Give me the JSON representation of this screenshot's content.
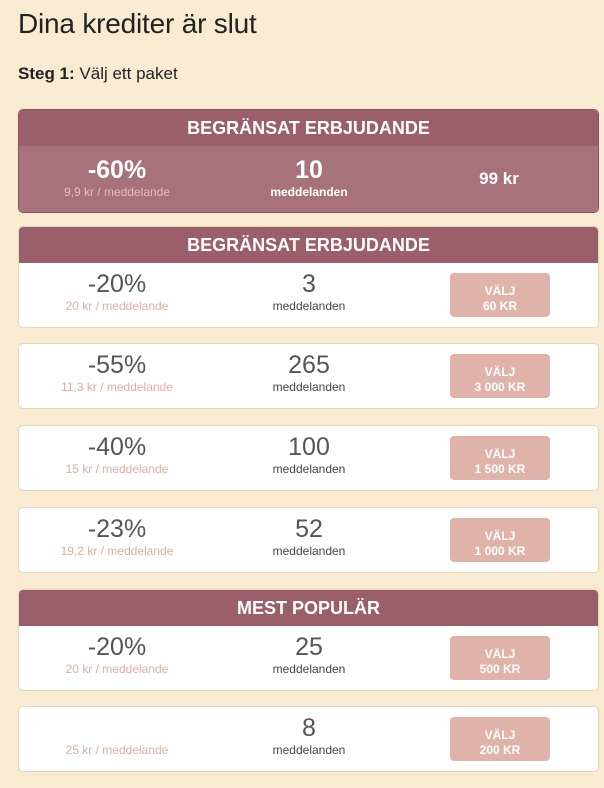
{
  "page": {
    "title": "Dina krediter är slut",
    "step_label": "Steg 1:",
    "step_text": " Välj ett paket"
  },
  "featured": {
    "header": "BEGRÄNSAT ERBJUDANDE",
    "discount": "-60%",
    "per_message": "9,9 kr / meddelande",
    "count": "10",
    "unit": "meddelanden",
    "price": "99 kr"
  },
  "offer_group": {
    "header": "BEGRÄNSAT ERBJUDANDE",
    "row": {
      "discount": "-20%",
      "per_message": "20 kr / meddelande",
      "count": "3",
      "unit": "meddelanden",
      "button_top": "VÄLJ",
      "button_price": "60 KR"
    }
  },
  "packages": [
    {
      "discount": "-55%",
      "per_message": "11,3 kr / meddelande",
      "count": "265",
      "unit": "meddelanden",
      "button_top": "VÄLJ",
      "button_price": "3 000 KR"
    },
    {
      "discount": "-40%",
      "per_message": "15 kr / meddelande",
      "count": "100",
      "unit": "meddelanden",
      "button_top": "VÄLJ",
      "button_price": "1 500 KR"
    },
    {
      "discount": "-23%",
      "per_message": "19,2 kr / meddelande",
      "count": "52",
      "unit": "meddelanden",
      "button_top": "VÄLJ",
      "button_price": "1 000 KR"
    }
  ],
  "popular": {
    "header": "MEST POPULÄR",
    "row": {
      "discount": "-20%",
      "per_message": "20 kr / meddelande",
      "count": "25",
      "unit": "meddelanden",
      "button_top": "VÄLJ",
      "button_price": "500 KR"
    }
  },
  "last_package": {
    "discount": "",
    "per_message": "25 kr / meddelande",
    "count": "8",
    "unit": "meddelanden",
    "button_top": "VÄLJ",
    "button_price": "200 KR"
  },
  "colors": {
    "background": "#f8ebd2",
    "header": "#9b5f6c",
    "featured_body": "#a8727d",
    "button": "#dfb3aa",
    "per_message_text": "#dcaea0"
  }
}
